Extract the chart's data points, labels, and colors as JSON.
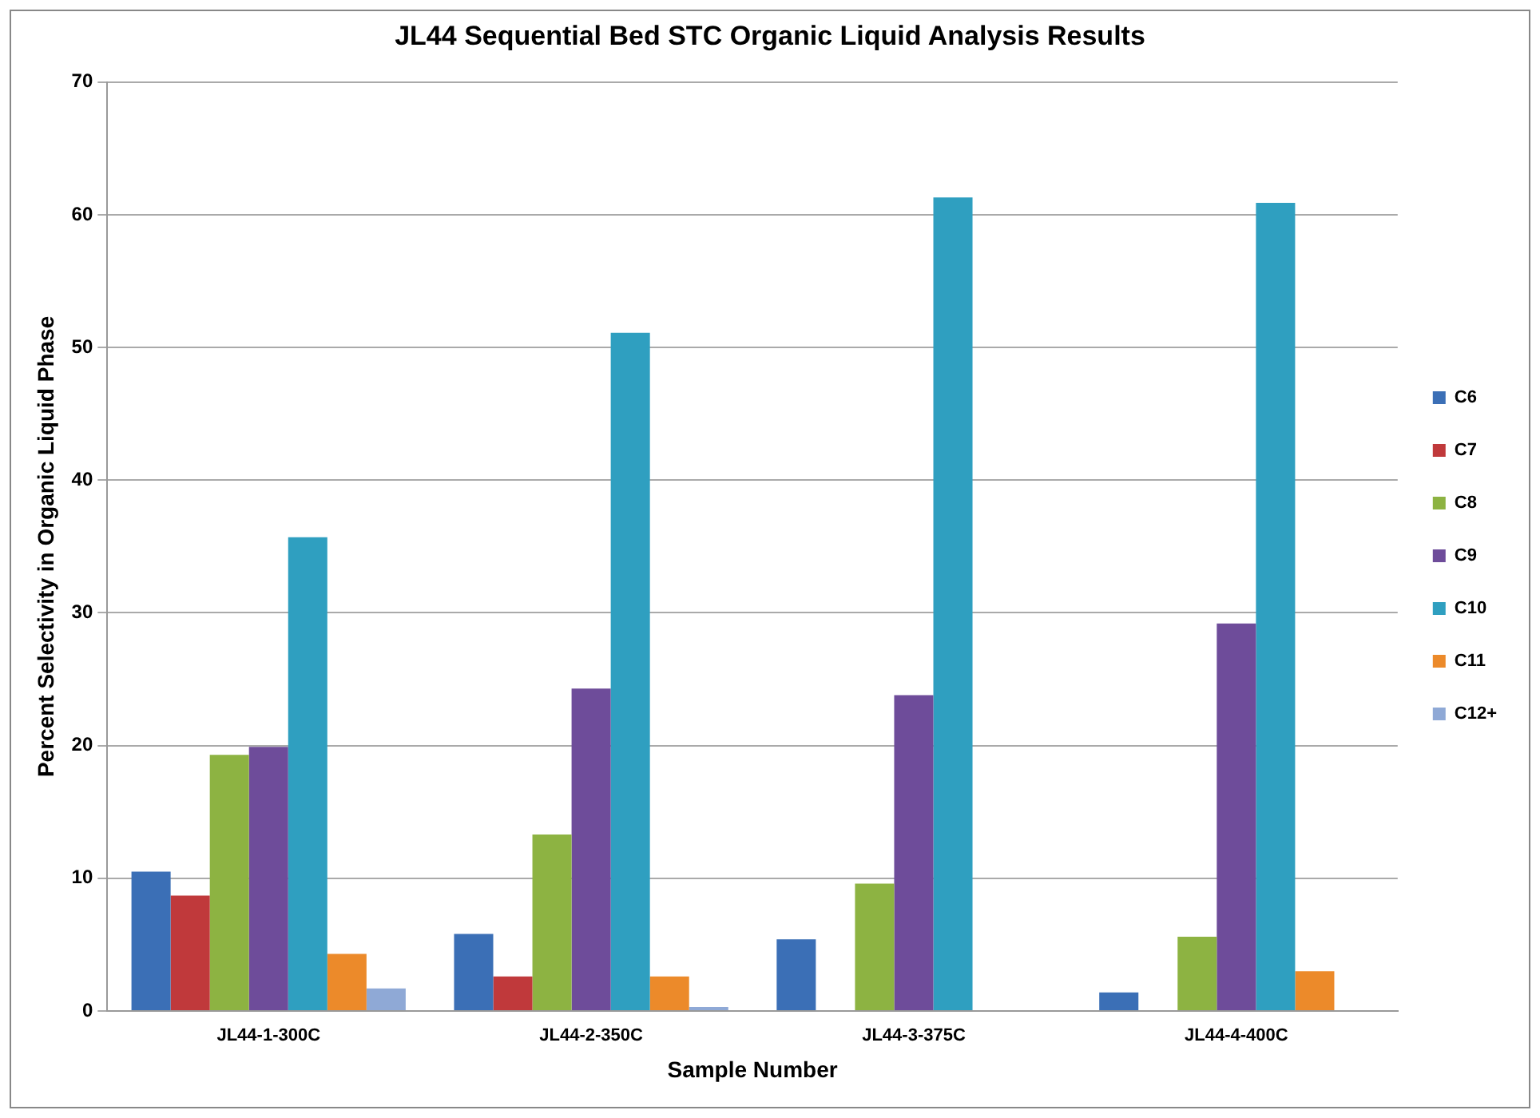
{
  "chart_data": {
    "type": "bar",
    "title": "JL44 Sequential Bed STC Organic Liquid Analysis Results",
    "xlabel": "Sample Number",
    "ylabel": "Percent Selectivity in Organic Liquid Phase",
    "categories": [
      "JL44-1-300C",
      "JL44-2-350C",
      "JL44-3-375C",
      "JL44-4-400C"
    ],
    "series": [
      {
        "name": "C6",
        "color": "#3b6fb6",
        "values": [
          10.5,
          5.8,
          5.4,
          1.4
        ]
      },
      {
        "name": "C7",
        "color": "#c0393b",
        "values": [
          8.7,
          2.6,
          null,
          null
        ]
      },
      {
        "name": "C8",
        "color": "#8db342",
        "values": [
          19.3,
          13.3,
          9.6,
          5.6
        ]
      },
      {
        "name": "C9",
        "color": "#6e4c9a",
        "values": [
          19.9,
          24.3,
          23.8,
          29.2
        ]
      },
      {
        "name": "C10",
        "color": "#2f9fc0",
        "values": [
          35.7,
          51.1,
          61.3,
          60.9
        ]
      },
      {
        "name": "C11",
        "color": "#ec8a2a",
        "values": [
          4.3,
          2.6,
          null,
          3.0
        ]
      },
      {
        "name": "C12+",
        "color": "#8fa9d6",
        "values": [
          1.7,
          0.3,
          null,
          null
        ]
      }
    ],
    "ylim": [
      0,
      70
    ],
    "yticks": [
      0,
      10,
      20,
      30,
      40,
      50,
      60,
      70
    ],
    "grid": "y",
    "legend": "right"
  }
}
